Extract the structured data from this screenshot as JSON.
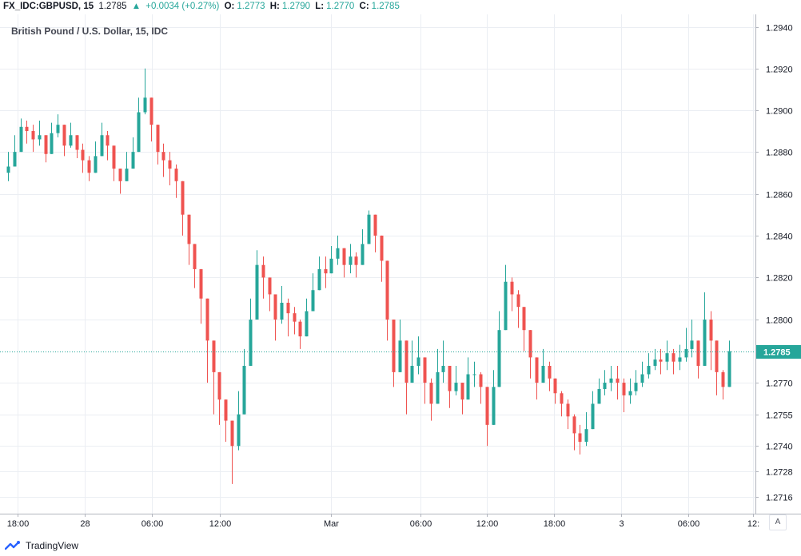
{
  "header": {
    "symbol": "FX_IDC:GBPUSD, 15",
    "last": "1.2785",
    "arrow": "▲",
    "change": "+0.0034 (+0.27%)",
    "o_label": "O:",
    "o_value": "1.2773",
    "h_label": "H:",
    "h_value": "1.2790",
    "l_label": "L:",
    "l_value": "1.2770",
    "c_label": "C:",
    "c_value": "1.2785"
  },
  "footer": {
    "brand": "TradingView"
  },
  "auto_button": "A",
  "colors": {
    "up": "#26a69a",
    "down": "#ef5350",
    "grid": "#ebeef3",
    "axis": "#b2b5be",
    "price_line": "#26a69a",
    "accent": "#2962ff"
  },
  "chart_data": {
    "type": "candlestick",
    "title": "British Pound / U.S. Dollar, 15, IDC",
    "xlabel": "",
    "ylabel": "",
    "ylim": [
      1.2708,
      1.2946
    ],
    "y_scale": "log",
    "grid": true,
    "y_ticks": [
      "1.2940",
      "1.2920",
      "1.2900",
      "1.2880",
      "1.2860",
      "1.2840",
      "1.2820",
      "1.2800",
      "1.2785",
      "1.2770",
      "1.2755",
      "1.2740",
      "1.2728",
      "1.2716"
    ],
    "x_ticks": [
      "18:00",
      "28",
      "06:00",
      "12:00",
      "Mar",
      "06:00",
      "12:00",
      "18:00",
      "3",
      "06:00",
      "12:"
    ],
    "current_price": 1.2785,
    "path": [
      [
        1.2873,
        1.288,
        1.2866
      ],
      [
        1.288,
        1.2888,
        1.2875
      ],
      [
        1.2892,
        1.2896,
        1.2885
      ],
      [
        1.289,
        1.2895,
        1.2884
      ],
      [
        1.2886,
        1.2893,
        1.288
      ],
      [
        1.2888,
        1.2895,
        1.2883
      ],
      [
        1.2879,
        1.2887,
        1.2875
      ],
      [
        1.2889,
        1.2894,
        1.2884
      ],
      [
        1.2893,
        1.2898,
        1.2887
      ],
      [
        1.2883,
        1.289,
        1.2878
      ],
      [
        1.2888,
        1.2894,
        1.2882
      ],
      [
        1.2881,
        1.2887,
        1.2877
      ],
      [
        1.2876,
        1.2884,
        1.287
      ],
      [
        1.287,
        1.2878,
        1.2866
      ],
      [
        1.2878,
        1.2885,
        1.2873
      ],
      [
        1.2888,
        1.2894,
        1.2883
      ],
      [
        1.2883,
        1.289,
        1.2876
      ],
      [
        1.2872,
        1.288,
        1.2866
      ],
      [
        1.2866,
        1.2872,
        1.286
      ],
      [
        1.2872,
        1.288,
        1.2866
      ],
      [
        1.288,
        1.2887,
        1.2874
      ],
      [
        1.2899,
        1.2906,
        1.2893
      ],
      [
        1.2906,
        1.292,
        1.2898
      ],
      [
        1.2893,
        1.2902,
        1.2885
      ],
      [
        1.288,
        1.2888,
        1.2874
      ],
      [
        1.2876,
        1.2884,
        1.2868
      ],
      [
        1.2872,
        1.288,
        1.2864
      ],
      [
        1.2866,
        1.2874,
        1.2858
      ],
      [
        1.285,
        1.286,
        1.284
      ],
      [
        1.2836,
        1.2844,
        1.2826
      ],
      [
        1.2824,
        1.2832,
        1.2815
      ],
      [
        1.281,
        1.282,
        1.2798
      ],
      [
        1.279,
        1.2805,
        1.277
      ],
      [
        1.2775,
        1.279,
        1.2755
      ],
      [
        1.2762,
        1.2772,
        1.275
      ],
      [
        1.2752,
        1.276,
        1.2742
      ],
      [
        1.274,
        1.2748,
        1.2722
      ],
      [
        1.2755,
        1.2766,
        1.2738
      ],
      [
        1.2778,
        1.2786,
        1.276
      ],
      [
        1.28,
        1.281,
        1.279
      ],
      [
        1.2826,
        1.2833,
        1.2815
      ],
      [
        1.282,
        1.283,
        1.281
      ],
      [
        1.2812,
        1.282,
        1.2804
      ],
      [
        1.28,
        1.2808,
        1.279
      ],
      [
        1.2808,
        1.2816,
        1.2798
      ],
      [
        1.2803,
        1.281,
        1.2792
      ],
      [
        1.2799,
        1.2806,
        1.2793
      ],
      [
        1.2792,
        1.28,
        1.2786
      ],
      [
        1.2804,
        1.281,
        1.2795
      ],
      [
        1.2814,
        1.2822,
        1.2807
      ],
      [
        1.2824,
        1.283,
        1.2816
      ],
      [
        1.2822,
        1.283,
        1.2815
      ],
      [
        1.2829,
        1.2835,
        1.2822
      ],
      [
        1.2834,
        1.284,
        1.2826
      ],
      [
        1.2826,
        1.2834,
        1.282
      ],
      [
        1.283,
        1.2836,
        1.2822
      ],
      [
        1.2826,
        1.2832,
        1.282
      ],
      [
        1.2836,
        1.2843,
        1.283
      ],
      [
        1.285,
        1.2852,
        1.284
      ],
      [
        1.284,
        1.2848,
        1.2832
      ],
      [
        1.2828,
        1.2838,
        1.2818
      ],
      [
        1.28,
        1.2812,
        1.279
      ],
      [
        1.2775,
        1.279,
        1.2768
      ],
      [
        1.279,
        1.28,
        1.2778
      ],
      [
        1.277,
        1.278,
        1.2755
      ],
      [
        1.2778,
        1.279,
        1.277
      ],
      [
        1.2782,
        1.2792,
        1.2774
      ],
      [
        1.277,
        1.278,
        1.276
      ],
      [
        1.276,
        1.2772,
        1.2752
      ],
      [
        1.2775,
        1.2786,
        1.2768
      ],
      [
        1.2778,
        1.279,
        1.277
      ],
      [
        1.2766,
        1.2776,
        1.2758
      ],
      [
        1.277,
        1.2778,
        1.2764
      ],
      [
        1.2762,
        1.277,
        1.2755
      ],
      [
        1.2774,
        1.2782,
        1.2768
      ],
      [
        1.2774,
        1.278,
        1.2768
      ],
      [
        1.2768,
        1.2775,
        1.276
      ],
      [
        1.275,
        1.276,
        1.274
      ],
      [
        1.2768,
        1.2776,
        1.276
      ],
      [
        1.2795,
        1.2804,
        1.2785
      ],
      [
        1.2818,
        1.2826,
        1.2808
      ],
      [
        1.2812,
        1.282,
        1.2804
      ],
      [
        1.2806,
        1.2814,
        1.2796
      ],
      [
        1.2795,
        1.2802,
        1.2785
      ],
      [
        1.2782,
        1.279,
        1.2772
      ],
      [
        1.277,
        1.278,
        1.2762
      ],
      [
        1.2778,
        1.2786,
        1.277
      ],
      [
        1.2772,
        1.278,
        1.2766
      ],
      [
        1.2765,
        1.2772,
        1.276
      ],
      [
        1.276,
        1.2766,
        1.2754
      ],
      [
        1.2754,
        1.2762,
        1.2748
      ],
      [
        1.2746,
        1.2755,
        1.2738
      ],
      [
        1.2742,
        1.275,
        1.2736
      ],
      [
        1.2748,
        1.2756,
        1.274
      ],
      [
        1.276,
        1.2766,
        1.2752
      ],
      [
        1.2767,
        1.2772,
        1.276
      ],
      [
        1.277,
        1.2776,
        1.2764
      ],
      [
        1.2772,
        1.2778,
        1.2766
      ],
      [
        1.277,
        1.2778,
        1.2762
      ],
      [
        1.2764,
        1.2772,
        1.2756
      ],
      [
        1.2766,
        1.2772,
        1.276
      ],
      [
        1.277,
        1.2776,
        1.2764
      ],
      [
        1.2774,
        1.278,
        1.2768
      ],
      [
        1.2778,
        1.2784,
        1.2772
      ],
      [
        1.2781,
        1.2786,
        1.2776
      ],
      [
        1.278,
        1.2786,
        1.2774
      ],
      [
        1.2784,
        1.279,
        1.2776
      ],
      [
        1.278,
        1.2786,
        1.2774
      ],
      [
        1.2782,
        1.2788,
        1.2776
      ],
      [
        1.2786,
        1.2796,
        1.278
      ],
      [
        1.279,
        1.28,
        1.2782
      ],
      [
        1.2778,
        1.2786,
        1.2772
      ],
      [
        1.28,
        1.2813,
        1.2782
      ],
      [
        1.279,
        1.2804,
        1.2776
      ],
      [
        1.2775,
        1.2785,
        1.2764
      ],
      [
        1.2768,
        1.2776,
        1.2762
      ],
      [
        1.2785,
        1.279,
        1.277
      ]
    ]
  }
}
